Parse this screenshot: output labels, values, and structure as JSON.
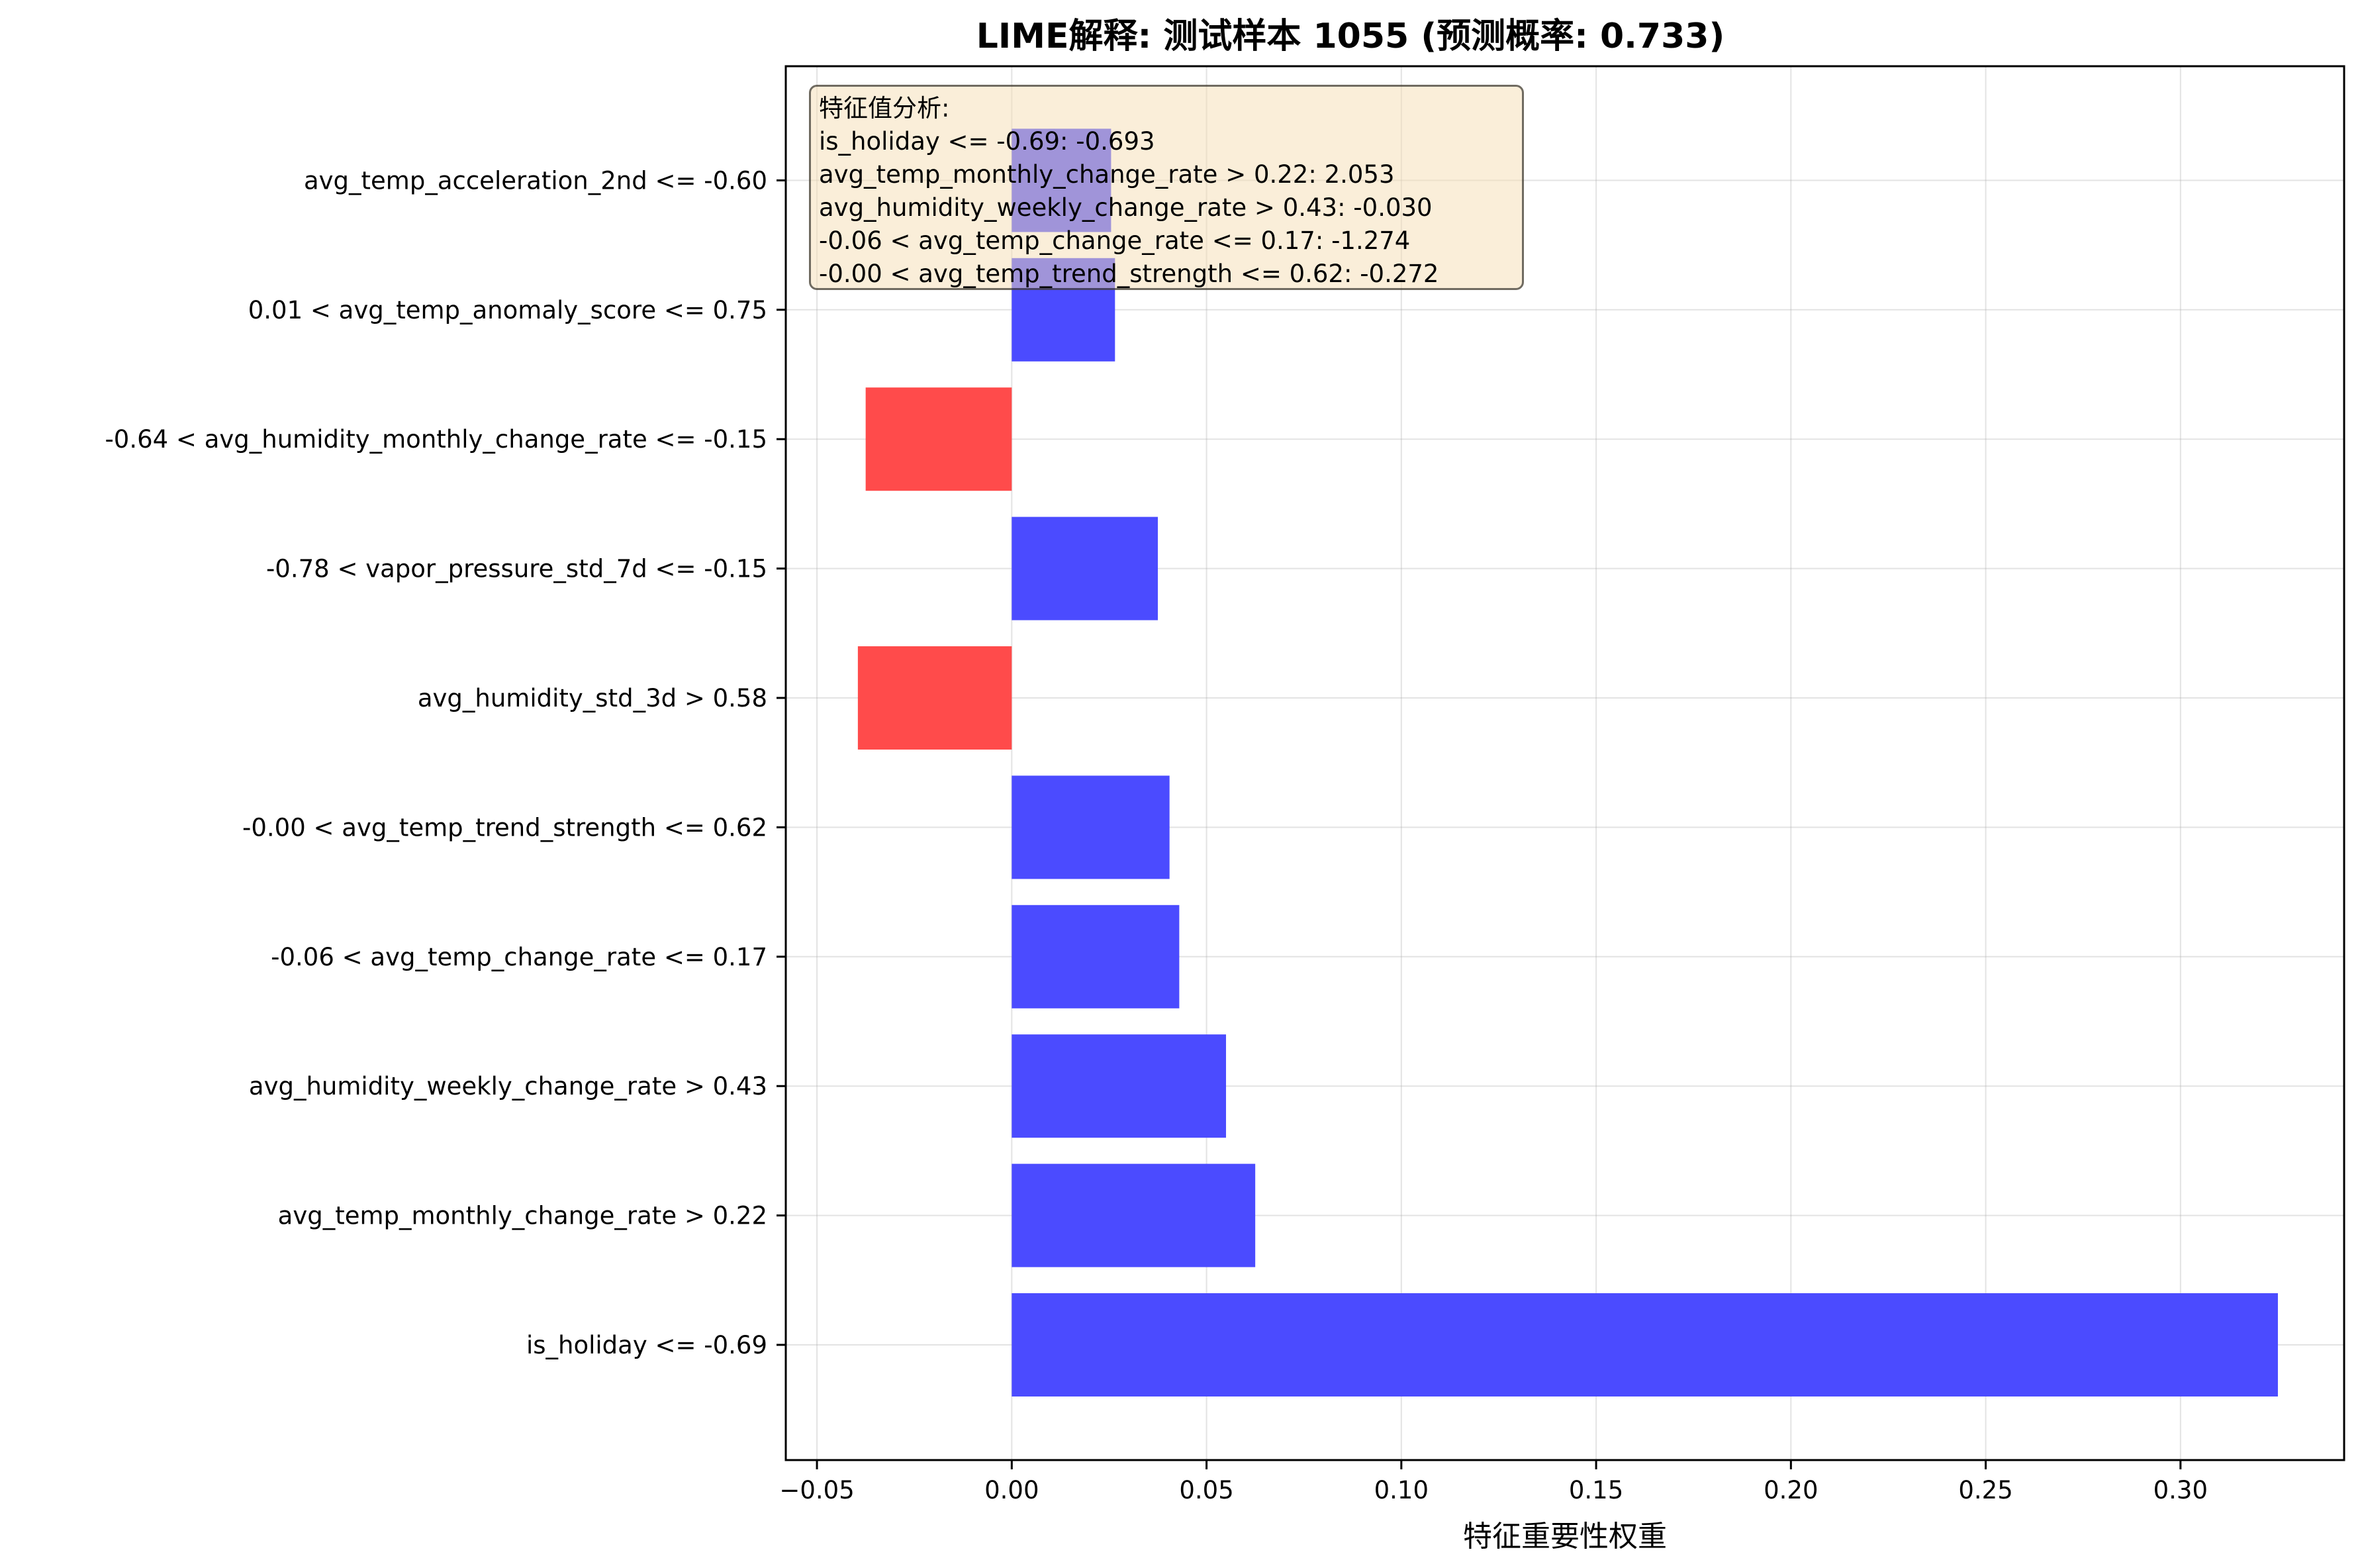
{
  "chart_data": {
    "type": "bar",
    "orientation": "horizontal",
    "title": "LIME解释: 测试样本 1055 (预测概率: 0.733)",
    "xlabel": "特征重要性权重",
    "ylabel": "",
    "xlim": [
      -0.058,
      0.342
    ],
    "xticks": [
      "−0.05",
      "0.00",
      "0.05",
      "0.10",
      "0.15",
      "0.20",
      "0.25",
      "0.30"
    ],
    "xtick_values": [
      -0.05,
      0.0,
      0.05,
      0.1,
      0.15,
      0.2,
      0.25,
      0.3
    ],
    "grid": true,
    "colors": {
      "positive": "#4b4bff",
      "negative": "#ff4b4b"
    },
    "categories": [
      "is_holiday <= -0.69",
      "avg_temp_monthly_change_rate > 0.22",
      "avg_humidity_weekly_change_rate > 0.43",
      "-0.06 < avg_temp_change_rate <= 0.17",
      "-0.00 < avg_temp_trend_strength <= 0.62",
      "avg_humidity_std_3d > 0.58",
      "-0.78 < vapor_pressure_std_7d <= -0.15",
      "-0.64 < avg_humidity_monthly_change_rate <= -0.15",
      "0.01 < avg_temp_anomaly_score <= 0.75",
      "avg_temp_acceleration_2nd <= -0.60"
    ],
    "values": [
      0.325,
      0.0625,
      0.055,
      0.043,
      0.0405,
      -0.0395,
      0.0375,
      -0.0375,
      0.0265,
      0.0255
    ]
  },
  "info_box": {
    "header": "特征值分析:",
    "lines": [
      "is_holiday <= -0.69: -0.693",
      "avg_temp_monthly_change_rate > 0.22: 2.053",
      "avg_humidity_weekly_change_rate > 0.43: -0.030",
      "-0.06 < avg_temp_change_rate <= 0.17: -1.274",
      "-0.00 < avg_temp_trend_strength <= 0.62: -0.272"
    ]
  }
}
